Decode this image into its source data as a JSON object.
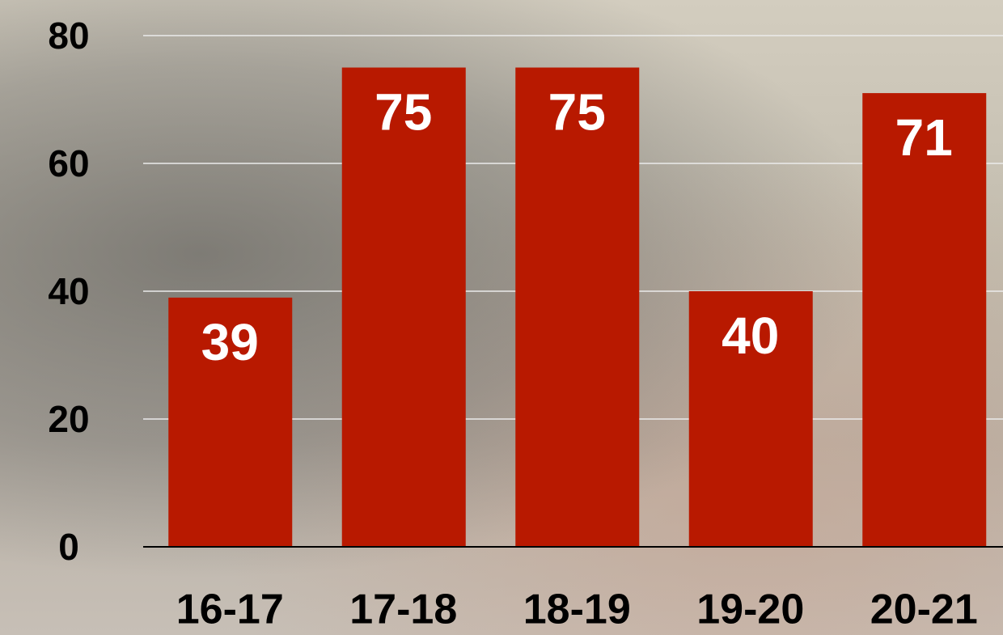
{
  "chart_data": {
    "type": "bar",
    "categories": [
      "16-17",
      "17-18",
      "18-19",
      "19-20",
      "20-21"
    ],
    "values": [
      39,
      75,
      75,
      40,
      71
    ],
    "color": "#b81900",
    "ylim": [
      0,
      80
    ],
    "yticks": [
      0,
      20,
      40,
      60,
      80
    ],
    "grid": true
  }
}
